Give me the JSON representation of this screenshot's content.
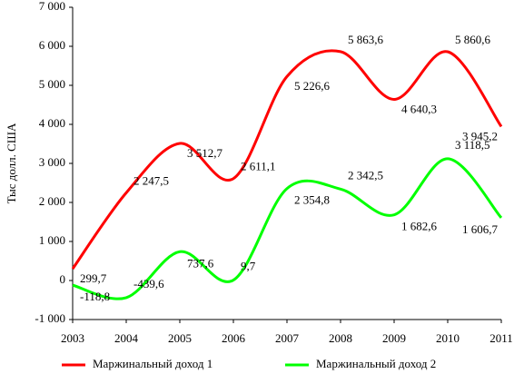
{
  "chart_data": {
    "type": "line",
    "y_label": "Тыс долл. США",
    "categories": [
      "2003",
      "2004",
      "2005",
      "2006",
      "2007",
      "2008",
      "2009",
      "2010",
      "2011"
    ],
    "series": [
      {
        "name": "Маржинальный доход 1",
        "color": "#ff0000",
        "values": [
          299.7,
          2247.5,
          3512.7,
          2611.1,
          5226.6,
          5863.6,
          4640.3,
          5860.6,
          3945.2
        ],
        "value_labels": [
          "299,7",
          "2 247,5",
          "3 512,7",
          "2 611,1",
          "5 226,6",
          "5 863,6",
          "4 640,3",
          "5 860,6",
          "3 945,2"
        ]
      },
      {
        "name": "Маржинальный доход 2",
        "color": "#00ff00",
        "values": [
          -118.8,
          -439.6,
          737.6,
          9.7,
          2354.8,
          2342.5,
          1682.6,
          3118.5,
          1606.7
        ],
        "value_labels": [
          "-118,8",
          "-439,6",
          "737,6",
          "9,7",
          "2 354,8",
          "2 342,5",
          "1 682,6",
          "3 118,5",
          "1 606,7"
        ]
      }
    ],
    "ylim": [
      -1000,
      7000
    ],
    "yticks": [
      {
        "value": -1000,
        "label": "-1 000"
      },
      0,
      {
        "value": 1000,
        "label": "1 000"
      },
      {
        "value": 2000,
        "label": "2 000"
      },
      {
        "value": 3000,
        "label": "3 000"
      },
      {
        "value": 4000,
        "label": "4 000"
      },
      {
        "value": 5000,
        "label": "5 000"
      },
      {
        "value": 6000,
        "label": "6 000"
      },
      {
        "value": 7000,
        "label": "7 000"
      }
    ],
    "legend": "bottom"
  }
}
